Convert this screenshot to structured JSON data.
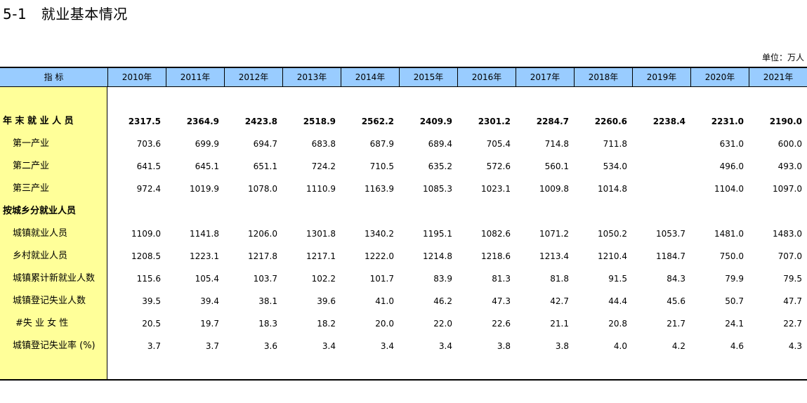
{
  "title": "5-1   就业基本情况",
  "unit": "单位：万人",
  "header": {
    "indicator": "指      标",
    "years": [
      "2010年",
      "2011年",
      "2012年",
      "2013年",
      "2014年",
      "2015年",
      "2016年",
      "2017年",
      "2018年",
      "2019年",
      "2020年",
      "2021年"
    ]
  },
  "rows": [
    {
      "label": "年 末 就 业 人 员",
      "bold": true,
      "indent": 0,
      "values": [
        "2317.5",
        "2364.9",
        "2423.8",
        "2518.9",
        "2562.2",
        "2409.9",
        "2301.2",
        "2284.7",
        "2260.6",
        "2238.4",
        "2231.0",
        "2190.0"
      ]
    },
    {
      "label": "第一产业",
      "bold": false,
      "indent": 1,
      "values": [
        "703.6",
        "699.9",
        "694.7",
        "683.8",
        "687.9",
        "689.4",
        "705.4",
        "714.8",
        "711.8",
        "",
        "631.0",
        "600.0"
      ]
    },
    {
      "label": "第二产业",
      "bold": false,
      "indent": 1,
      "values": [
        "641.5",
        "645.1",
        "651.1",
        "724.2",
        "710.5",
        "635.2",
        "572.6",
        "560.1",
        "534.0",
        "",
        "496.0",
        "493.0"
      ]
    },
    {
      "label": "第三产业",
      "bold": false,
      "indent": 1,
      "values": [
        "972.4",
        "1019.9",
        "1078.0",
        "1110.9",
        "1163.9",
        "1085.3",
        "1023.1",
        "1009.8",
        "1014.8",
        "",
        "1104.0",
        "1097.0"
      ]
    },
    {
      "label": "按城乡分就业人员",
      "bold": true,
      "indent": 0,
      "values": [
        "",
        "",
        "",
        "",
        "",
        "",
        "",
        "",
        "",
        "",
        "",
        ""
      ]
    },
    {
      "label": "城镇就业人员",
      "bold": false,
      "indent": 1,
      "values": [
        "1109.0",
        "1141.8",
        "1206.0",
        "1301.8",
        "1340.2",
        "1195.1",
        "1082.6",
        "1071.2",
        "1050.2",
        "1053.7",
        "1481.0",
        "1483.0"
      ]
    },
    {
      "label": "乡村就业人员",
      "bold": false,
      "indent": 1,
      "values": [
        "1208.5",
        "1223.1",
        "1217.8",
        "1217.1",
        "1222.0",
        "1214.8",
        "1218.6",
        "1213.4",
        "1210.4",
        "1184.7",
        "750.0",
        "707.0"
      ]
    },
    {
      "label": "城镇累计新就业人数",
      "bold": false,
      "indent": 1,
      "values": [
        "115.6",
        "105.4",
        "103.7",
        "102.2",
        "101.7",
        "83.9",
        "81.3",
        "81.8",
        "91.5",
        "84.3",
        "79.9",
        "79.5"
      ]
    },
    {
      "label": "城镇登记失业人数",
      "bold": false,
      "indent": 1,
      "values": [
        "39.5",
        "39.4",
        "38.1",
        "39.6",
        "41.0",
        "46.2",
        "47.3",
        "42.7",
        "44.4",
        "45.6",
        "50.7",
        "47.7"
      ]
    },
    {
      "label": "#失 业 女 性",
      "bold": false,
      "indent": 2,
      "values": [
        "20.5",
        "19.7",
        "18.3",
        "18.2",
        "20.0",
        "22.0",
        "22.6",
        "21.1",
        "20.8",
        "21.7",
        "24.1",
        "22.7"
      ]
    },
    {
      "label": "城镇登记失业率 (%)",
      "bold": false,
      "indent": 1,
      "values": [
        "3.7",
        "3.7",
        "3.6",
        "3.4",
        "3.4",
        "3.4",
        "3.8",
        "3.8",
        "4.0",
        "4.2",
        "4.6",
        "4.3"
      ]
    }
  ],
  "colors": {
    "header_bg": "#99ccff",
    "label_col_bg": "#ffff99"
  }
}
